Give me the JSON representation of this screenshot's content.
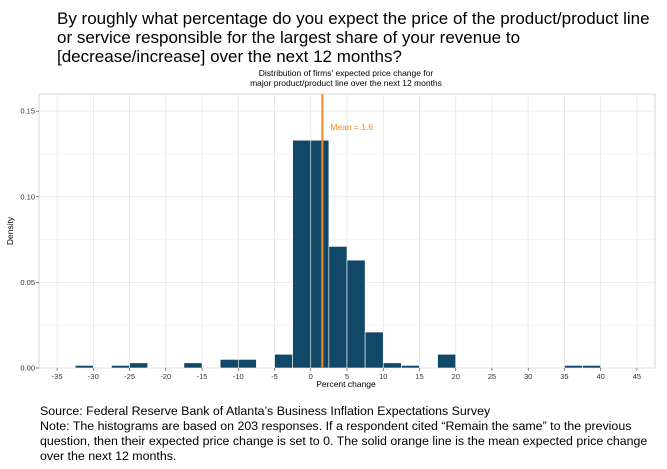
{
  "question": "By roughly what percentage do you expect the price of the product/product line or service responsible for the largest share of your revenue to [decrease/increase] over the next 12 months?",
  "chart_data": {
    "type": "bar",
    "title": [
      "Distribution of firms' expected price change for",
      "major product/product line over the next 12 months"
    ],
    "xlabel": "Percent change",
    "ylabel": "Density",
    "xlim": [
      -37.5,
      47.5
    ],
    "ylim": [
      0,
      0.16
    ],
    "xticks": [
      -35,
      -30,
      -25,
      -20,
      -15,
      -10,
      -5,
      0,
      5,
      10,
      15,
      20,
      25,
      30,
      35,
      40,
      45
    ],
    "yticks": [
      0,
      0.05,
      0.1,
      0.15
    ],
    "ytick_labels": [
      "0.00",
      "0.05",
      "0.10",
      "0.15"
    ],
    "bin_width": 2.5,
    "bins": [
      {
        "x0": -32.5,
        "density": 0.0015
      },
      {
        "x0": -27.5,
        "density": 0.0015
      },
      {
        "x0": -25.0,
        "density": 0.003
      },
      {
        "x0": -17.5,
        "density": 0.003
      },
      {
        "x0": -12.5,
        "density": 0.005
      },
      {
        "x0": -10.0,
        "density": 0.005
      },
      {
        "x0": -5.0,
        "density": 0.008
      },
      {
        "x0": -2.5,
        "density": 0.133
      },
      {
        "x0": 0.0,
        "density": 0.133
      },
      {
        "x0": 2.5,
        "density": 0.071
      },
      {
        "x0": 5.0,
        "density": 0.063
      },
      {
        "x0": 7.5,
        "density": 0.021
      },
      {
        "x0": 10.0,
        "density": 0.003
      },
      {
        "x0": 12.5,
        "density": 0.0015
      },
      {
        "x0": 17.5,
        "density": 0.008
      },
      {
        "x0": 35.0,
        "density": 0.0015
      },
      {
        "x0": 37.5,
        "density": 0.0015
      }
    ],
    "bar_color": "#114767",
    "mean": 1.6,
    "mean_label": "Mean = 1.6",
    "mean_color": "#f08a24",
    "grid": true
  },
  "footnote": {
    "source": "Source: Federal Reserve Bank of Atlanta’s Business Inflation Expectations Survey",
    "note": "Note: The histograms are based on 203 responses. If a respondent cited “Remain the same” to the previous question, then their expected price change is set to 0. The solid orange line is the mean expected price change over the next 12 months."
  }
}
